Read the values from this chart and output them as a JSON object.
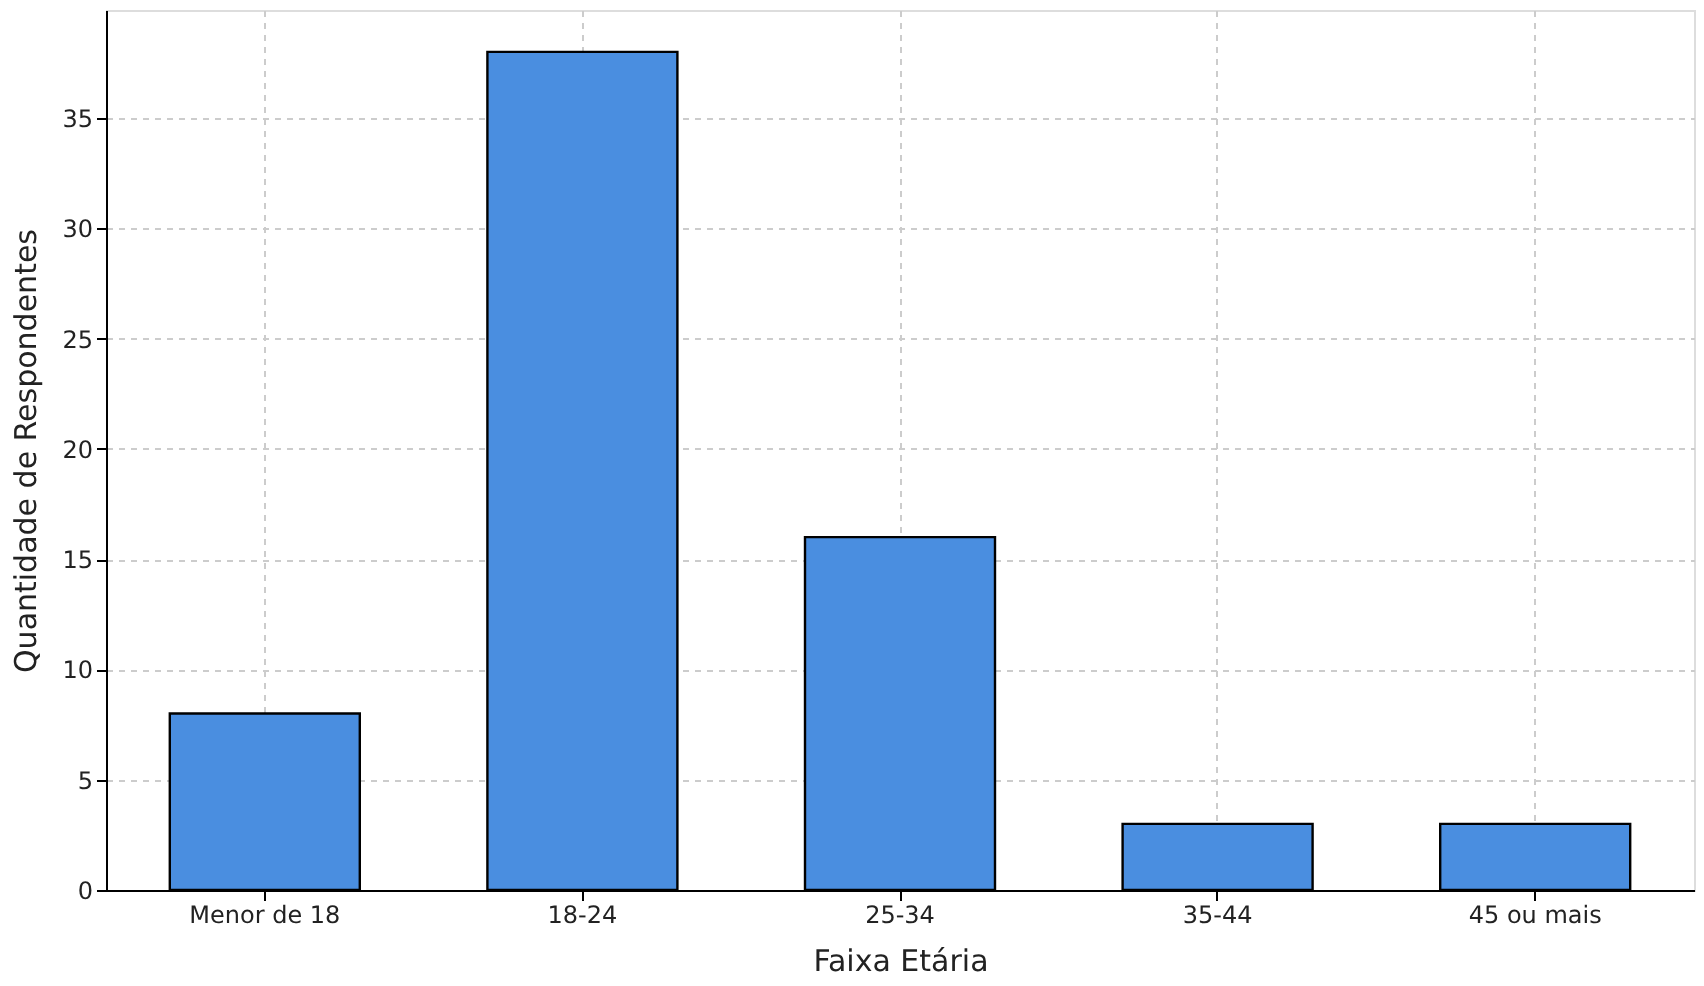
{
  "chart_data": {
    "type": "bar",
    "xlabel": "Faixa Etária",
    "ylabel": "Quantidade de Respondentes",
    "categories": [
      "Menor de 18",
      "18-24",
      "25-34",
      "35-44",
      "45 ou mais"
    ],
    "values": [
      8,
      38,
      16,
      3,
      3
    ],
    "color": "#4a8ee0",
    "ylim": [
      0,
      39.9
    ],
    "yticks": [
      0,
      5,
      10,
      15,
      20,
      25,
      30,
      35
    ],
    "grid": true
  }
}
